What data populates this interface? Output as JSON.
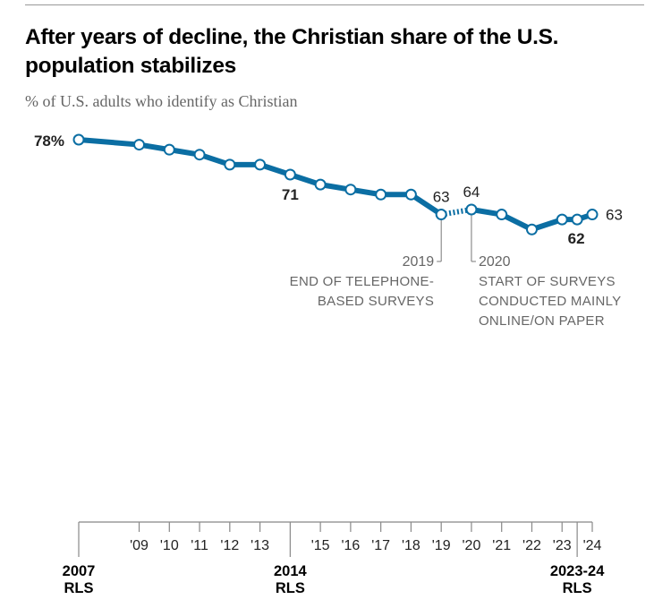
{
  "title": "After years of decline, the Christian share of the U.S. population stabilizes",
  "subtitle": "% of U.S. adults who identify as Christian",
  "colors": {
    "line": "#0b6ea3",
    "annotation": "#666666",
    "axis": "#888888"
  },
  "chart_data": {
    "type": "line",
    "title": "After years of decline, the Christian share of the U.S. population stabilizes",
    "ylabel": "% of U.S. adults who identify as Christian",
    "points": [
      {
        "x": 2007,
        "y": 78,
        "label": "78%",
        "bold": true
      },
      {
        "x": 2009,
        "y": 77
      },
      {
        "x": 2010,
        "y": 76
      },
      {
        "x": 2011,
        "y": 75
      },
      {
        "x": 2012,
        "y": 73
      },
      {
        "x": 2013,
        "y": 73
      },
      {
        "x": 2014,
        "y": 71,
        "label": "71",
        "bold": true
      },
      {
        "x": 2015,
        "y": 69
      },
      {
        "x": 2016,
        "y": 68
      },
      {
        "x": 2017,
        "y": 67
      },
      {
        "x": 2018,
        "y": 67
      },
      {
        "x": 2019,
        "y": 63,
        "label": "63"
      },
      {
        "x": 2020,
        "y": 64,
        "label": "64"
      },
      {
        "x": 2021,
        "y": 63
      },
      {
        "x": 2022,
        "y": 60
      },
      {
        "x": 2023,
        "y": 62
      },
      {
        "x": 2023.5,
        "y": 62,
        "label": "62",
        "bold": true
      },
      {
        "x": 2024,
        "y": 63,
        "label": "63"
      }
    ],
    "dotted_segment": [
      2019,
      2020
    ],
    "xticks": [
      {
        "x": 2007,
        "label": "2007",
        "sub": "RLS",
        "major": true
      },
      {
        "x": 2009,
        "label": "'09"
      },
      {
        "x": 2010,
        "label": "'10"
      },
      {
        "x": 2011,
        "label": "'11"
      },
      {
        "x": 2012,
        "label": "'12"
      },
      {
        "x": 2013,
        "label": "'13"
      },
      {
        "x": 2014,
        "label": "2014",
        "sub": "RLS",
        "major": true
      },
      {
        "x": 2015,
        "label": "'15"
      },
      {
        "x": 2016,
        "label": "'16"
      },
      {
        "x": 2017,
        "label": "'17"
      },
      {
        "x": 2018,
        "label": "'18"
      },
      {
        "x": 2019,
        "label": "'19"
      },
      {
        "x": 2020,
        "label": "'20"
      },
      {
        "x": 2021,
        "label": "'21"
      },
      {
        "x": 2022,
        "label": "'22"
      },
      {
        "x": 2023,
        "label": "'23"
      },
      {
        "x": 2023.5,
        "label": "2023-24",
        "sub": "RLS",
        "major": true
      },
      {
        "x": 2024,
        "label": "'24"
      }
    ],
    "xlim": [
      2007,
      2024
    ],
    "annotations": [
      {
        "x": 2019,
        "side": "left",
        "lines": [
          "2019",
          "END OF TELEPHONE-",
          "BASED SURVEYS"
        ]
      },
      {
        "x": 2020,
        "side": "right",
        "lines": [
          "2020",
          "START OF SURVEYS",
          "CONDUCTED MAINLY",
          "ONLINE/ON PAPER"
        ]
      }
    ],
    "grid": false,
    "legend": "none"
  }
}
